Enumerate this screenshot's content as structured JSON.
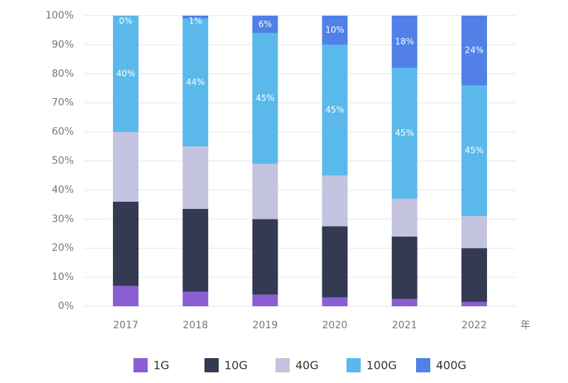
{
  "chart_data": {
    "type": "stacked_bar",
    "categories": [
      "2017",
      "2018",
      "2019",
      "2020",
      "2021",
      "2022"
    ],
    "x_label": "年",
    "series": [
      {
        "name": "1G",
        "color": "#8a5fd3",
        "values": [
          7,
          5,
          4,
          3,
          2.5,
          1.5
        ]
      },
      {
        "name": "10G",
        "color": "#333a52",
        "values": [
          29,
          28.5,
          26,
          24.5,
          21.5,
          18.5
        ]
      },
      {
        "name": "40G",
        "color": "#c3c3e0",
        "values": [
          24,
          21.5,
          19,
          17.5,
          13,
          11
        ]
      },
      {
        "name": "100G",
        "color": "#5ab9ea",
        "values": [
          40,
          44,
          45,
          45,
          45,
          45
        ],
        "value_labels": [
          "40%",
          "44%",
          "45%",
          "45%",
          "45%",
          "45%"
        ]
      },
      {
        "name": "400G",
        "color": "#5080e8",
        "values": [
          0,
          1,
          6,
          10,
          18,
          24
        ],
        "value_labels": [
          "0%",
          "1%",
          "6%",
          "10%",
          "18%",
          "24%"
        ]
      }
    ],
    "ylim": [
      0,
      100
    ],
    "yticks": [
      {
        "value": 0,
        "label": "0%"
      },
      {
        "value": 10,
        "label": "10%"
      },
      {
        "value": 20,
        "label": "20%"
      },
      {
        "value": 30,
        "label": "30%"
      },
      {
        "value": 40,
        "label": "40%"
      },
      {
        "value": 50,
        "label": "50%"
      },
      {
        "value": 60,
        "label": "60%"
      },
      {
        "value": 70,
        "label": "70%"
      },
      {
        "value": 80,
        "label": "80%"
      },
      {
        "value": 90,
        "label": "90%"
      },
      {
        "value": 100,
        "label": "100%"
      }
    ],
    "grid": true
  }
}
